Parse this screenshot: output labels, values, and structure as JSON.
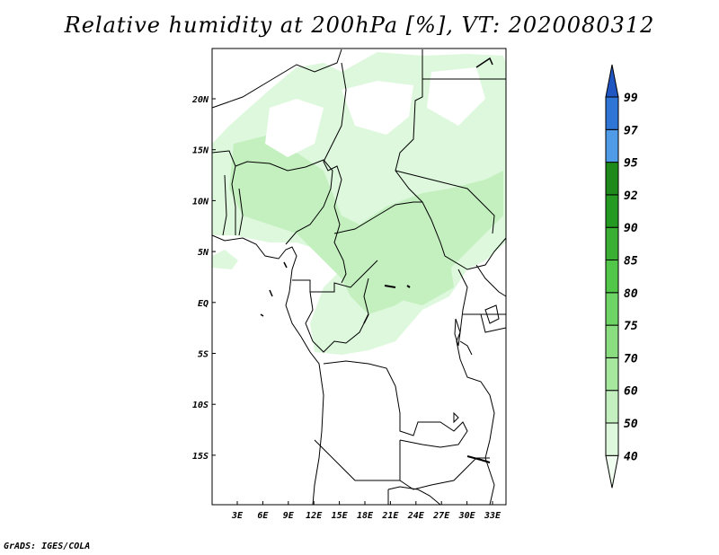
{
  "title": "Relative humidity at 200hPa [%], VT: 2020080312",
  "credit": "GrADS: IGES/COLA",
  "map": {
    "x_ticks": [
      "3E",
      "6E",
      "9E",
      "12E",
      "15E",
      "18E",
      "21E",
      "24E",
      "27E",
      "30E",
      "33E"
    ],
    "y_ticks": [
      "20N",
      "15N",
      "10N",
      "5N",
      "EQ",
      "5S",
      "10S",
      "15S"
    ]
  },
  "colorbar": {
    "levels": [
      "40",
      "50",
      "60",
      "70",
      "75",
      "80",
      "85",
      "90",
      "92",
      "95",
      "97",
      "99"
    ],
    "colors": [
      "#f0fff0",
      "#ddf8dc",
      "#c4f0c0",
      "#a6e89e",
      "#8ade7f",
      "#6fd466",
      "#52c649",
      "#3aaf33",
      "#259a22",
      "#1f8a1c",
      "#4f9be8",
      "#2e75d6",
      "#1f56c2"
    ]
  }
}
